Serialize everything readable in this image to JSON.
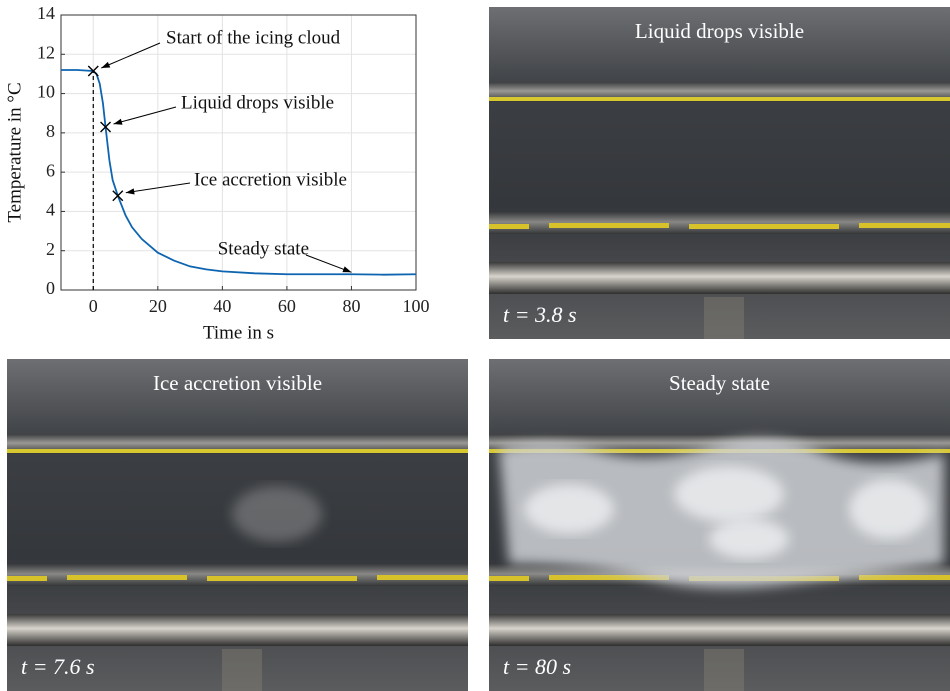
{
  "chart_data": {
    "type": "line",
    "x": [
      -10,
      -5,
      0,
      1,
      2,
      3,
      3.8,
      5,
      6,
      7.6,
      10,
      12,
      15,
      20,
      25,
      30,
      35,
      40,
      50,
      60,
      70,
      80,
      90,
      100
    ],
    "values": [
      11.2,
      11.2,
      11.15,
      11.0,
      10.5,
      9.5,
      8.3,
      6.6,
      5.6,
      4.8,
      3.8,
      3.2,
      2.6,
      1.9,
      1.5,
      1.2,
      1.05,
      0.95,
      0.85,
      0.8,
      0.8,
      0.8,
      0.78,
      0.8
    ],
    "color": "#0d64b0",
    "xlabel": "Time in s",
    "ylabel": "Temperature in °C",
    "xlim": [
      -10,
      100
    ],
    "ylim": [
      0,
      14
    ],
    "xticks": [
      0,
      20,
      40,
      60,
      80,
      100
    ],
    "yticks": [
      0,
      2,
      4,
      6,
      8,
      10,
      12,
      14
    ],
    "grid": true,
    "annotations": [
      {
        "text": "Start of the icing cloud",
        "x": 0,
        "y": 11.15
      },
      {
        "text": "Liquid drops visible",
        "x": 3.8,
        "y": 8.3
      },
      {
        "text": "Ice accretion visible",
        "x": 7.6,
        "y": 4.8
      },
      {
        "text": "Steady state",
        "x": 80,
        "y": 0.8
      }
    ]
  },
  "photos": [
    {
      "title": "Liquid drops visible",
      "time": "t = 3.8 s"
    },
    {
      "title": "Ice accretion visible",
      "time": "t = 7.6 s"
    },
    {
      "title": "Steady state",
      "time": "t = 80 s"
    }
  ]
}
